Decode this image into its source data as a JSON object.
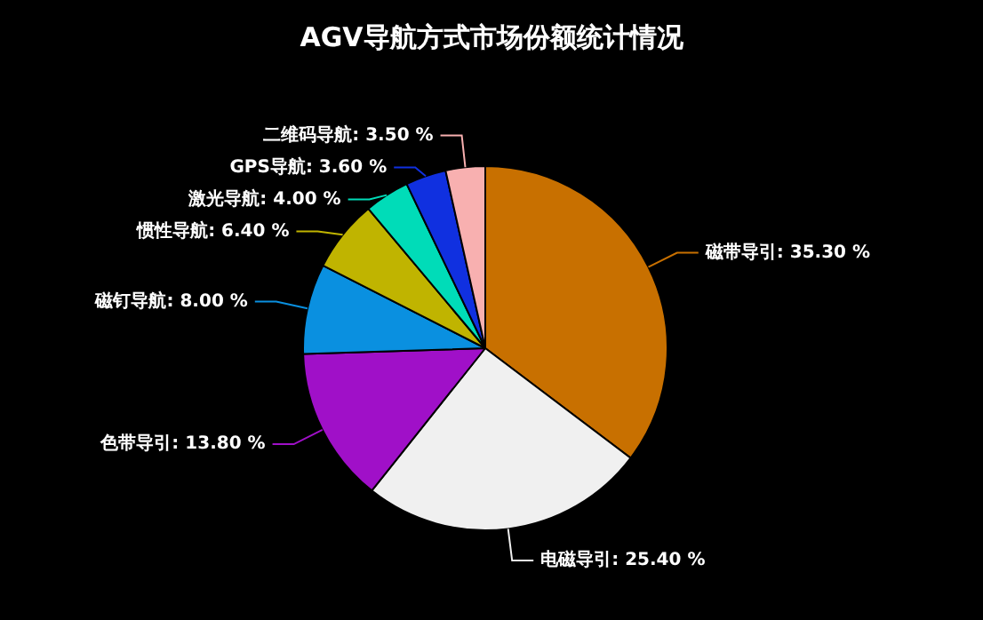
{
  "chart_data": {
    "type": "pie",
    "title": "AGV导航方式市场份额统计情况",
    "categories": [
      "磁带导引",
      "电磁导引",
      "色带导引",
      "磁钉导航",
      "惯性导航",
      "激光导航",
      "GPS导航",
      "二维码导航"
    ],
    "values": [
      35.3,
      25.4,
      13.8,
      8.0,
      6.4,
      4.0,
      3.6,
      3.5
    ],
    "value_labels": [
      "35.30 %",
      "25.40 %",
      "13.80 %",
      "8.00 %",
      "6.40 %",
      "4.00 %",
      "3.60 %",
      "3.50 %"
    ],
    "colors": [
      "#c87000",
      "#f0f0f0",
      "#a010c8",
      "#0a90e0",
      "#c0b400",
      "#00dcb8",
      "#1030e0",
      "#f8b0b0"
    ],
    "legend": false
  }
}
